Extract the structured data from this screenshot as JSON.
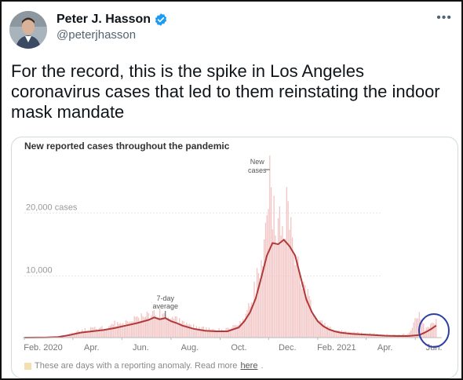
{
  "author": {
    "name": "Peter J. Hasson",
    "handle": "@peterjhasson"
  },
  "more_label": "•••",
  "tweet_text": "For the record, this is the spike in Los Angeles coronavirus cases that led to them reinstating the indoor mask mandate",
  "colors": {
    "verified": "#1d9bf0",
    "line": "#b03a3a",
    "bars": "#f2c4c4",
    "anomaly": "#f4dfb1",
    "highlight_circle": "#2b3fa6"
  },
  "chart_data": {
    "type": "area",
    "title": "New reported cases throughout the pandemic",
    "y_ticks": [
      {
        "value": 10000,
        "label": "10,000"
      },
      {
        "value": 20000,
        "label": "20,000 cases"
      }
    ],
    "ylim": [
      0,
      28000
    ],
    "x_tick_labels": [
      "Feb. 2020",
      "Apr.",
      "Jun.",
      "Aug.",
      "Oct.",
      "Dec.",
      "Feb. 2021",
      "Apr.",
      "Jun."
    ],
    "x_tick_weeks": [
      0,
      8.6,
      17.3,
      26,
      34.7,
      43.3,
      52,
      60.6,
      69.3
    ],
    "annotations": {
      "bars_label": [
        "New",
        "cases"
      ],
      "line_label": [
        "7-day",
        "average"
      ]
    },
    "average_series": {
      "name": "7-day average",
      "x_weeks": [
        0,
        4,
        6,
        8,
        10,
        12,
        14,
        16,
        18,
        20,
        22,
        23,
        24,
        25,
        26,
        27,
        28,
        30,
        32,
        34,
        36,
        38,
        39,
        40,
        41,
        42,
        43,
        44,
        45,
        46,
        47,
        48,
        49,
        50,
        51,
        52,
        53,
        54,
        55,
        56,
        58,
        60,
        62,
        64,
        66,
        68,
        70,
        71,
        72,
        73
      ],
      "y_values": [
        0,
        20,
        100,
        400,
        800,
        1000,
        1200,
        1500,
        1900,
        2300,
        2800,
        3200,
        2900,
        3100,
        2600,
        2300,
        1900,
        1400,
        1100,
        1000,
        1000,
        1600,
        2600,
        4000,
        6200,
        9500,
        13000,
        15000,
        14800,
        15500,
        14500,
        13000,
        9500,
        6000,
        4000,
        2600,
        1800,
        1300,
        1000,
        800,
        600,
        500,
        400,
        300,
        250,
        250,
        400,
        800,
        1300,
        1900
      ]
    },
    "daily_series": {
      "name": "New cases",
      "x_weeks": [
        0,
        6,
        8,
        10,
        12,
        14,
        16,
        18,
        20,
        22,
        23,
        24,
        25,
        26,
        27,
        28,
        30,
        32,
        34,
        36,
        38,
        39,
        40,
        41,
        42,
        43,
        43.5,
        44,
        44.5,
        45,
        45.5,
        46,
        46.5,
        47,
        48,
        49,
        50,
        51,
        52,
        53,
        54,
        55,
        56,
        58,
        60,
        62,
        64,
        66,
        68,
        70,
        71,
        72,
        73
      ],
      "y_values": [
        0,
        200,
        600,
        1100,
        1400,
        1500,
        2200,
        2600,
        3000,
        3600,
        4200,
        3900,
        3400,
        3000,
        2700,
        2300,
        1700,
        1400,
        1200,
        1300,
        2000,
        3200,
        5200,
        8000,
        12000,
        17000,
        26500,
        19000,
        21000,
        16500,
        18000,
        17500,
        20000,
        17000,
        14000,
        10500,
        7000,
        4500,
        3200,
        2200,
        1600,
        1200,
        1000,
        800,
        700,
        600,
        500,
        400,
        600,
        3800,
        1200,
        1900,
        2400
      ]
    },
    "xlim": [
      0,
      74
    ],
    "grid": false
  },
  "footnote": {
    "text": "These are days with a reporting anomaly. Read more",
    "link": "here",
    "end": "."
  }
}
